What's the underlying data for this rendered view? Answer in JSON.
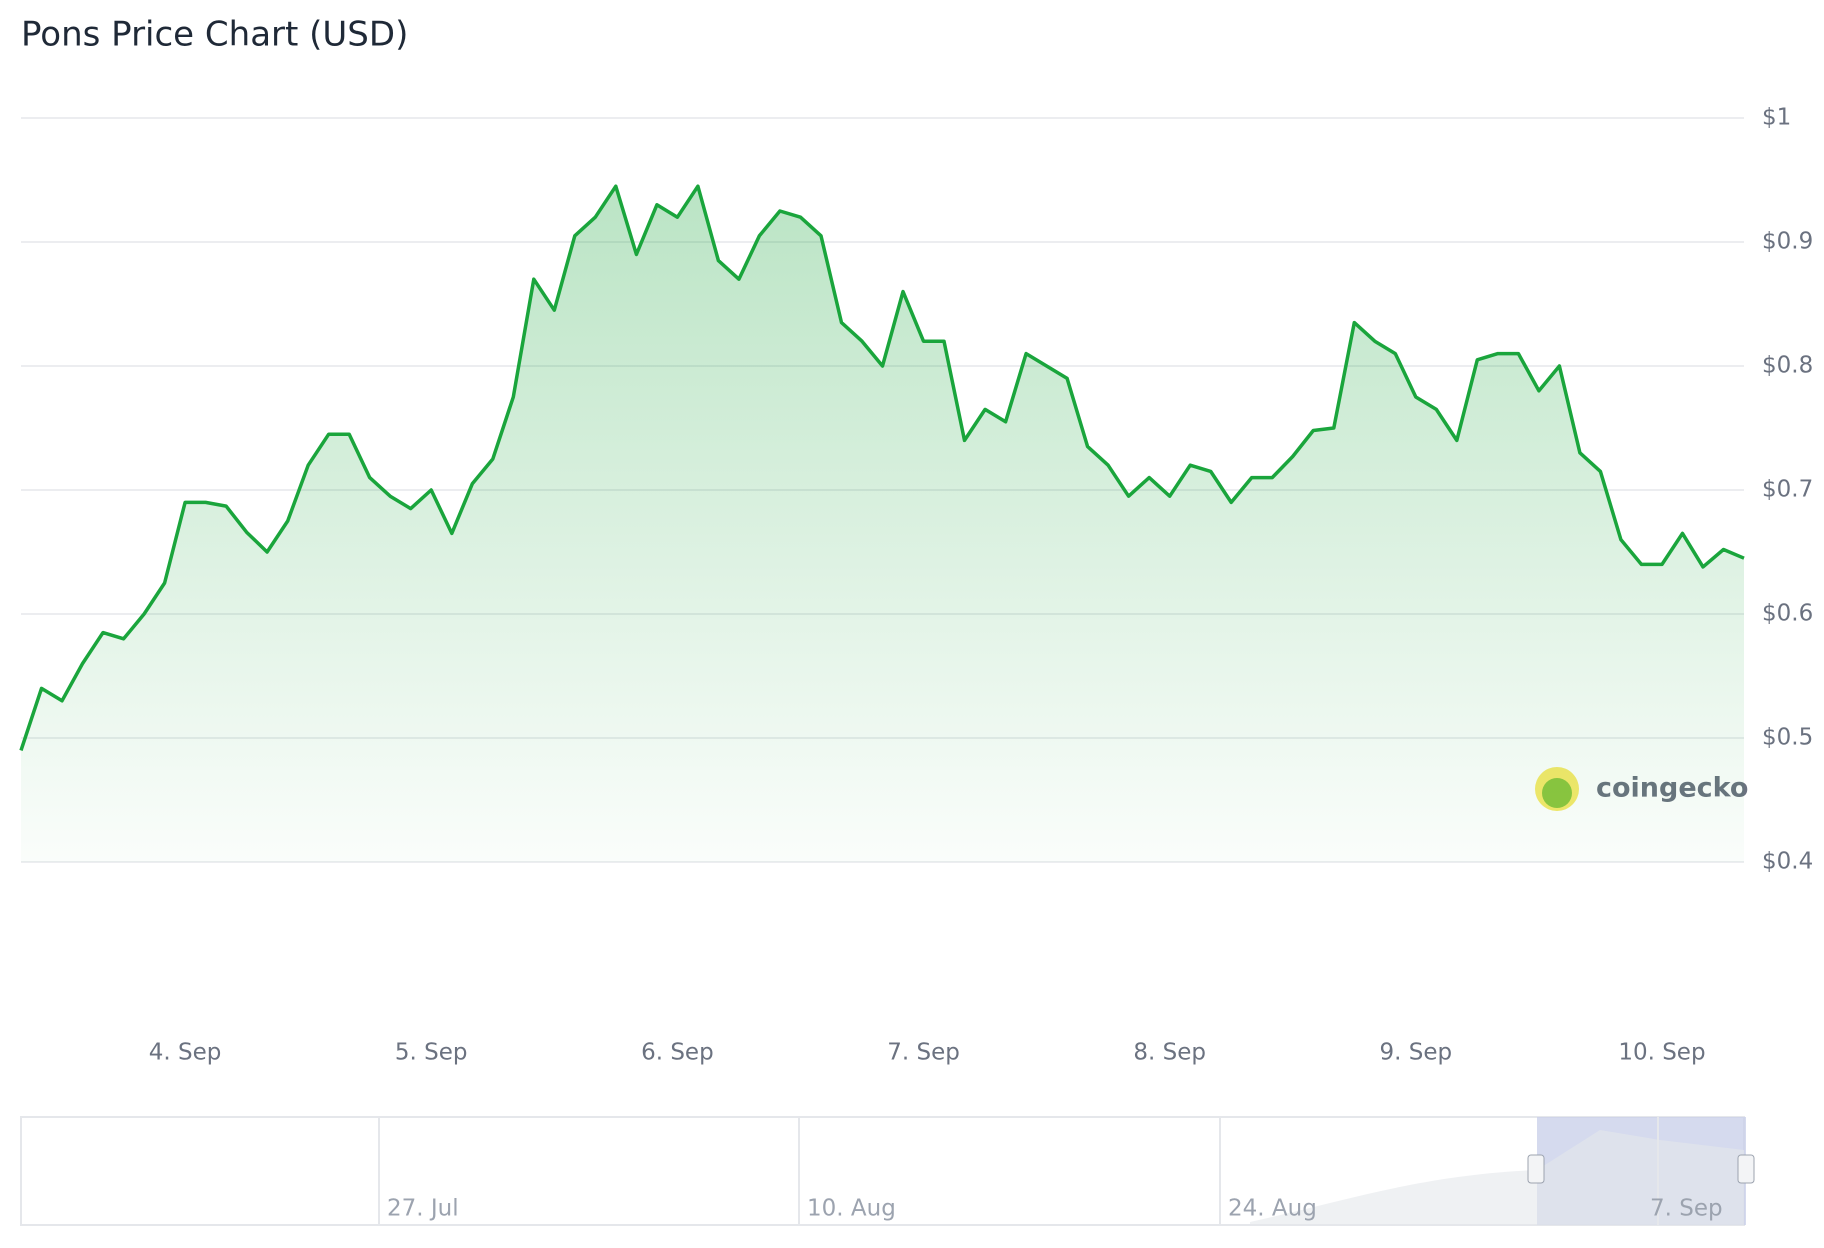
{
  "chart_data": {
    "type": "line",
    "title": "Pons Price Chart (USD)",
    "categories": [
      null,
      null,
      null,
      null,
      null,
      null,
      null,
      null,
      "4. Sep",
      null,
      null,
      null,
      null,
      null,
      null,
      null,
      null,
      null,
      null,
      null,
      "5. Sep",
      null,
      null,
      null,
      null,
      null,
      null,
      null,
      null,
      null,
      null,
      null,
      "6. Sep",
      null,
      null,
      null,
      null,
      null,
      null,
      null,
      null,
      null,
      null,
      null,
      "7. Sep",
      null,
      null,
      null,
      null,
      null,
      null,
      null,
      null,
      null,
      null,
      null,
      "8. Sep",
      null,
      null,
      null,
      null,
      null,
      null,
      null,
      null,
      null,
      null,
      null,
      "9. Sep",
      null,
      null,
      null,
      null,
      null,
      null,
      null,
      null,
      null,
      null,
      null,
      "10. Sep",
      null,
      null,
      null,
      null
    ],
    "series": [
      {
        "name": "Pons",
        "color": "#1aa53c",
        "values": [
          0.49,
          0.54,
          0.53,
          0.56,
          0.585,
          0.58,
          0.6,
          0.625,
          0.69,
          0.69,
          0.687,
          0.666,
          0.65,
          0.675,
          0.72,
          0.745,
          0.745,
          0.71,
          0.695,
          0.685,
          0.7,
          0.665,
          0.705,
          0.725,
          0.775,
          0.87,
          0.845,
          0.905,
          0.92,
          0.945,
          0.89,
          0.93,
          0.92,
          0.945,
          0.885,
          0.87,
          0.905,
          0.925,
          0.92,
          0.905,
          0.835,
          0.82,
          0.8,
          0.86,
          0.82,
          0.82,
          0.74,
          0.765,
          0.755,
          0.81,
          0.8,
          0.79,
          0.735,
          0.72,
          0.695,
          0.71,
          0.695,
          0.72,
          0.715,
          0.69,
          0.71,
          0.71,
          0.727,
          0.748,
          0.75,
          0.835,
          0.82,
          0.81,
          0.775,
          0.765,
          0.74,
          0.805,
          0.81,
          0.81,
          0.78,
          0.8,
          0.73,
          0.715,
          0.66,
          0.64,
          0.64,
          0.665,
          0.638,
          0.652,
          0.645
        ]
      }
    ],
    "ylim": [
      0.4,
      1
    ],
    "yticks": [
      {
        "value": 0.4,
        "label": "$0.4"
      },
      {
        "value": 0.5,
        "label": "$0.5"
      },
      {
        "value": 0.6,
        "label": "$0.6"
      },
      {
        "value": 0.7,
        "label": "$0.7"
      },
      {
        "value": 0.8,
        "label": "$0.8"
      },
      {
        "value": 0.9,
        "label": "$0.9"
      },
      {
        "value": 1,
        "label": "$1"
      }
    ],
    "grid": true,
    "watermark": "coingecko",
    "navigator_labels": [
      "27. Jul",
      "10. Aug",
      "24. Aug",
      "7. Sep"
    ]
  }
}
